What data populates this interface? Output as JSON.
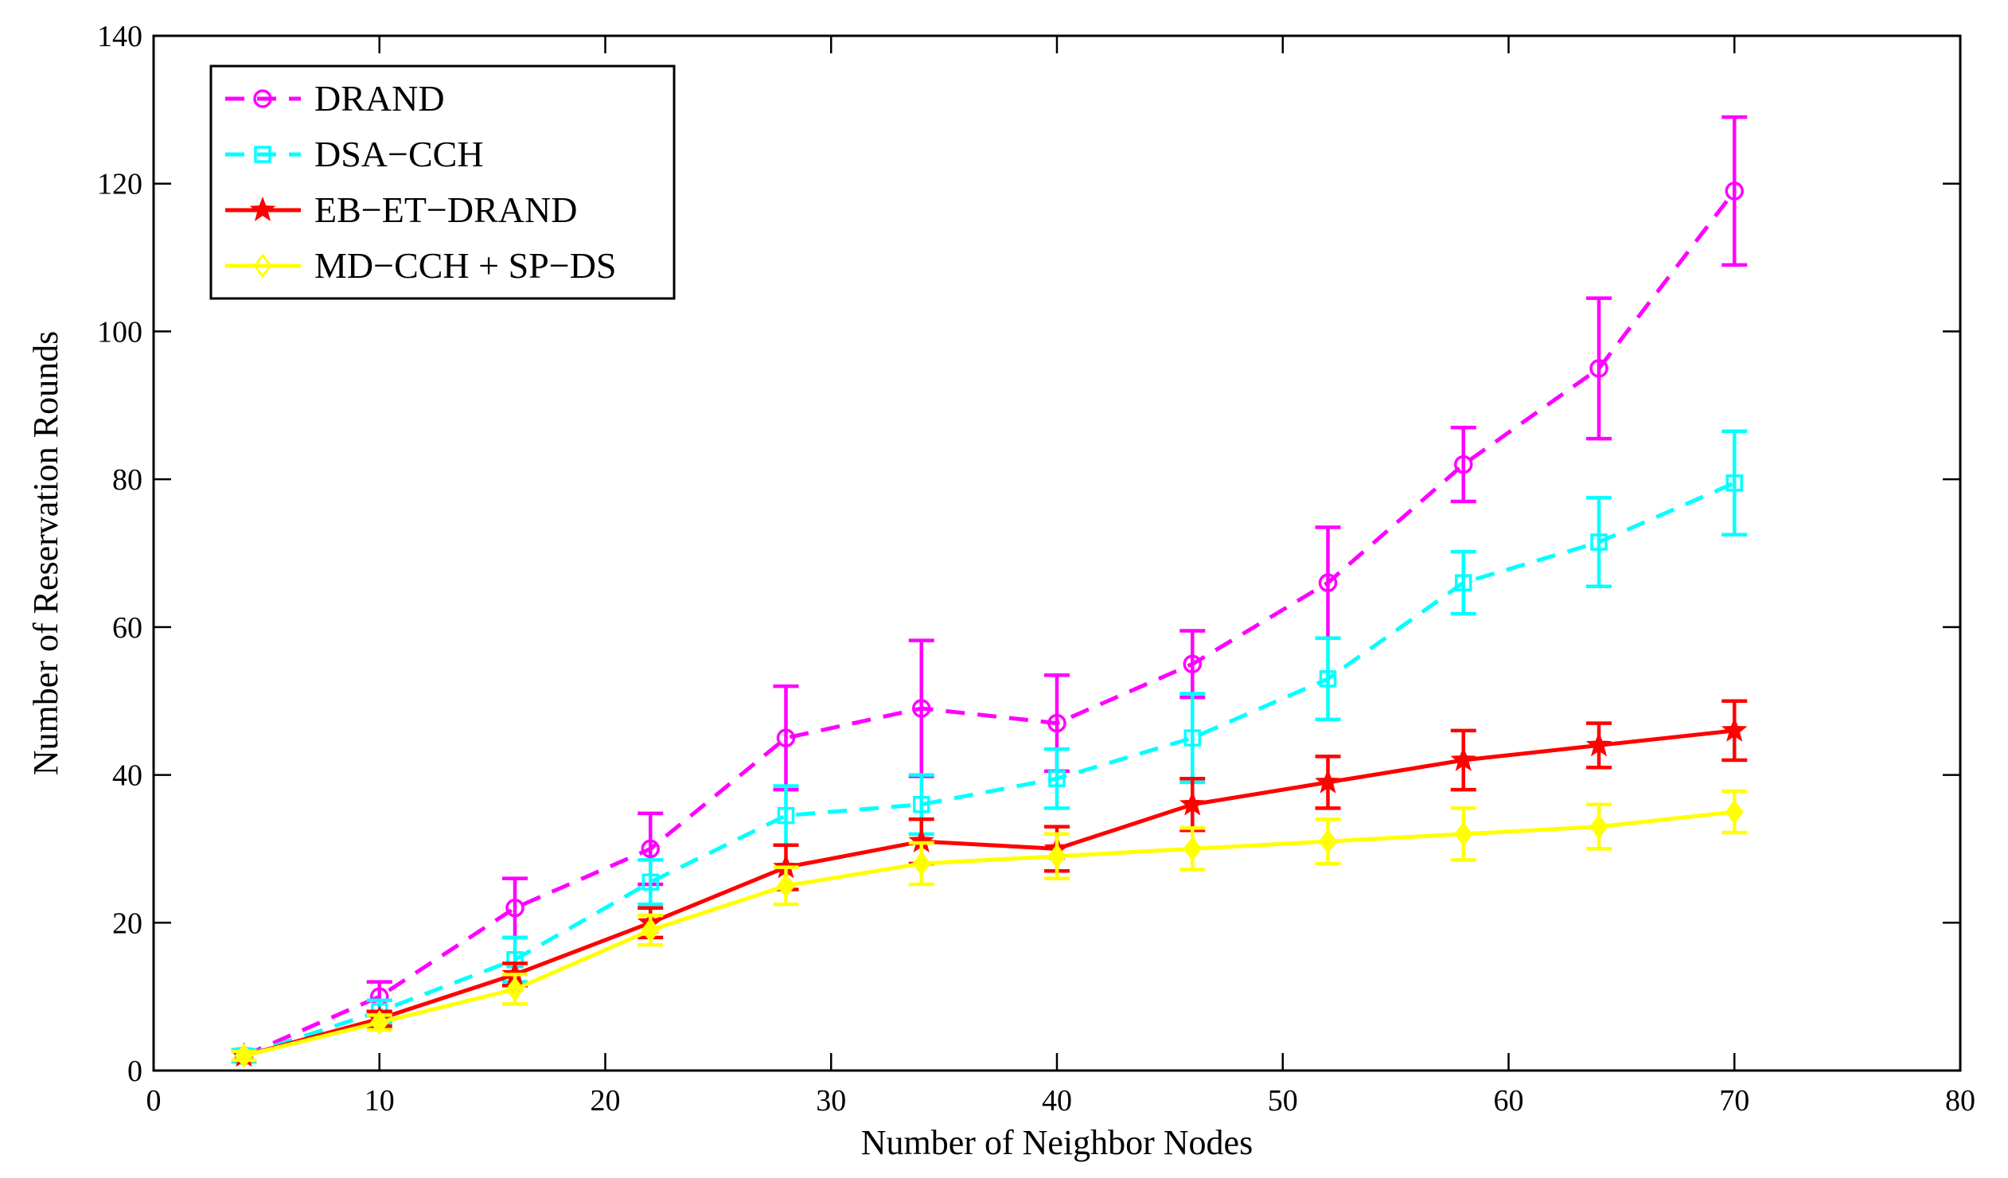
{
  "chart_data": {
    "type": "line",
    "title": "",
    "xlabel": "Number of Neighbor Nodes",
    "ylabel": "Number of Reservation Rounds",
    "xlim": [
      0,
      80
    ],
    "ylim": [
      0,
      140
    ],
    "xticks": [
      0,
      10,
      20,
      30,
      40,
      50,
      60,
      70,
      80
    ],
    "yticks": [
      0,
      20,
      40,
      60,
      80,
      100,
      120,
      140
    ],
    "x": [
      4,
      10,
      16,
      22,
      28,
      34,
      40,
      46,
      52,
      58,
      64,
      70
    ],
    "legend_position": "top-left",
    "series": [
      {
        "name": "DRAND",
        "color": "#ff00ff",
        "line": "dashed",
        "marker": "circle",
        "values": [
          2,
          10,
          22,
          30,
          45,
          49,
          47,
          55,
          66,
          82,
          95,
          119
        ],
        "errors": [
          0.8,
          2,
          4,
          4.8,
          7,
          9.2,
          6.5,
          4.5,
          7.5,
          5,
          9.5,
          10
        ]
      },
      {
        "name": "DSA−CCH",
        "color": "#00ffff",
        "line": "dashed",
        "marker": "square",
        "values": [
          2,
          8,
          15,
          25.5,
          34.5,
          36,
          39.5,
          45,
          53,
          66,
          71.5,
          79.5
        ],
        "errors": [
          0.8,
          1.5,
          3,
          3,
          4,
          4,
          4,
          6,
          5.5,
          4.2,
          6,
          7
        ]
      },
      {
        "name": "EB−ET−DRAND",
        "color": "#ff0000",
        "line": "solid",
        "marker": "star",
        "values": [
          2,
          7,
          13,
          20,
          27.5,
          31,
          30,
          36,
          39,
          42,
          44,
          46
        ],
        "errors": [
          0.6,
          1,
          1.5,
          2,
          3,
          3,
          3,
          3.5,
          3.5,
          4,
          3,
          4
        ]
      },
      {
        "name": "MD−CCH + SP−DS",
        "color": "#ffff00",
        "line": "solid",
        "marker": "diamond",
        "values": [
          2,
          6.5,
          11,
          19,
          25,
          28,
          29,
          30,
          31,
          32,
          33,
          35
        ],
        "errors": [
          0.6,
          1,
          2,
          2,
          2.5,
          2.8,
          3,
          2.8,
          3,
          3.5,
          3,
          2.8
        ]
      }
    ]
  }
}
